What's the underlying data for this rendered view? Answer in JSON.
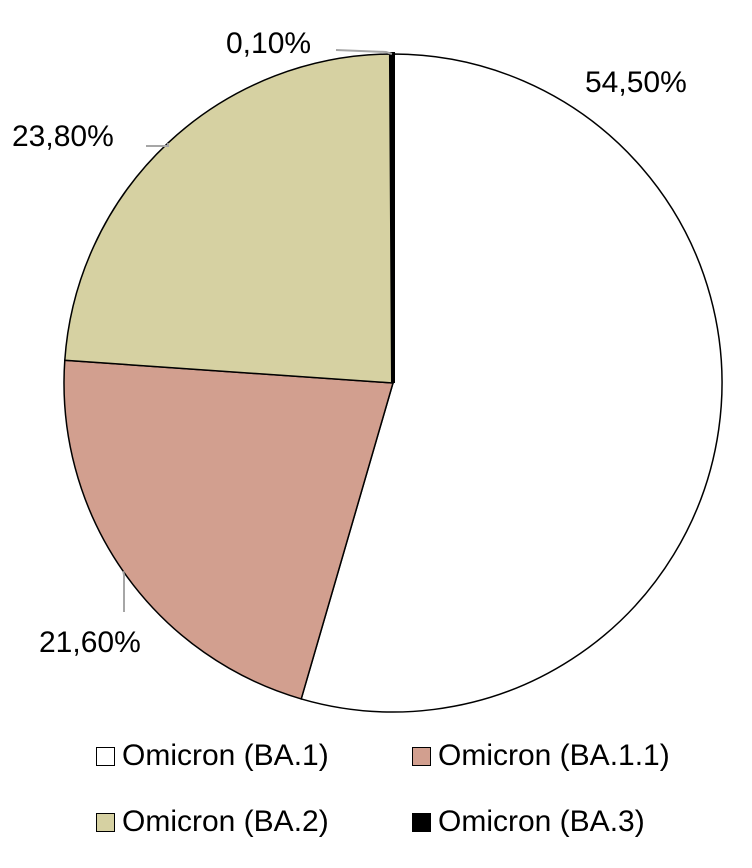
{
  "chart_data": {
    "type": "pie",
    "title": "",
    "categories": [
      "Omicron (BA.1)",
      "Omicron (BA.1.1)",
      "Omicron (BA.2)",
      "Omicron (BA.3)"
    ],
    "values": [
      54.5,
      21.6,
      23.8,
      0.1
    ],
    "data_labels": [
      "54,50%",
      "21,60%",
      "23,80%",
      "0,10%"
    ],
    "colors": [
      "#ffffff",
      "#d29f8f",
      "#d6d1a2",
      "#000000"
    ],
    "legend": "bottom",
    "start": "12 o'clock, clockwise"
  }
}
